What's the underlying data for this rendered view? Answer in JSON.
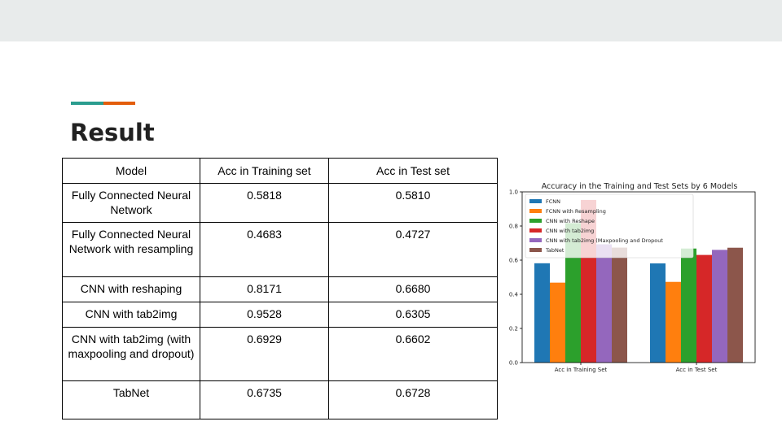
{
  "slide": {
    "title": "Result",
    "accent_colors": [
      "#2a9d8f",
      "#e35d0b"
    ]
  },
  "table": {
    "headers": [
      "Model",
      "Acc in Training set",
      "Acc in Test set"
    ],
    "rows": [
      {
        "model": "Fully Connected Neural Network",
        "train": "0.5818",
        "test": "0.5810"
      },
      {
        "model": "Fully Connected Neural Network with resampling",
        "train": "0.4683",
        "test": "0.4727"
      },
      {
        "model": "CNN with reshaping",
        "train": "0.8171",
        "test": "0.6680"
      },
      {
        "model": "CNN with tab2img",
        "train": "0.9528",
        "test": "0.6305"
      },
      {
        "model": "CNN with tab2img (with maxpooling and dropout)",
        "train": "0.6929",
        "test": "0.6602"
      },
      {
        "model": "TabNet",
        "train": "0.6735",
        "test": "0.6728"
      }
    ]
  },
  "chart_data": {
    "type": "bar",
    "title": "Accuracy in the Training and Test Sets by 6 Models",
    "categories": [
      "Acc in Training Set",
      "Acc in Test Set"
    ],
    "series": [
      {
        "name": "FCNN",
        "values": [
          0.5818,
          0.581
        ],
        "color": "#1f77b4"
      },
      {
        "name": "FCNN with Resampling",
        "values": [
          0.4683,
          0.4727
        ],
        "color": "#ff7f0e"
      },
      {
        "name": "CNN with Reshape",
        "values": [
          0.8171,
          0.668
        ],
        "color": "#2ca02c"
      },
      {
        "name": "CNN with tab2img",
        "values": [
          0.9528,
          0.6305
        ],
        "color": "#d62728"
      },
      {
        "name": "CNN with tab2img (Maxpooling and Dropout",
        "values": [
          0.6929,
          0.6602
        ],
        "color": "#9467bd"
      },
      {
        "name": "TabNet",
        "values": [
          0.6735,
          0.6728
        ],
        "color": "#8c564b"
      }
    ],
    "ylim": [
      0,
      1.0
    ],
    "yticks": [
      "0.0",
      "0.2",
      "0.4",
      "0.6",
      "0.8",
      "1.0"
    ],
    "grid": false,
    "legend_position": "top-left"
  }
}
